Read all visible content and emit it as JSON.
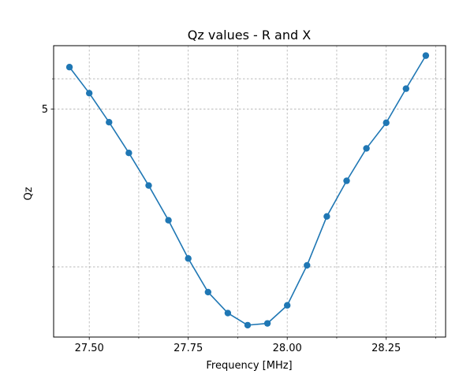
{
  "chart_data": {
    "type": "line",
    "title": "Qz values - R and X",
    "xlabel": "Frequency [MHz]",
    "ylabel": "Qz",
    "x": [
      27.45,
      27.5,
      27.55,
      27.6,
      27.65,
      27.7,
      27.75,
      27.8,
      27.85,
      27.9,
      27.95,
      28.0,
      28.05,
      28.1,
      28.15,
      28.2,
      28.25,
      28.3,
      28.35
    ],
    "series": [
      {
        "values": [
          8.4,
          6.12,
          4.21,
          2.73,
          1.6,
          0.75,
          0.11,
          -0.36,
          -0.74,
          -1.0,
          -0.96,
          -0.59,
          0.02,
          0.83,
          1.74,
          2.92,
          4.18,
          6.47,
          9.62
        ],
        "color": "#1f77b4"
      }
    ],
    "xlim": [
      27.41,
      28.4
    ],
    "ylim": [
      -1.29,
      10.8
    ],
    "xticks": [
      27.5,
      27.75,
      28.0,
      28.25
    ],
    "xtick_labels": [
      "27.50",
      "27.75",
      "28.00",
      "28.25"
    ],
    "yticks": [
      5
    ],
    "ytick_labels": [
      "5"
    ],
    "y_scale": "log",
    "grid": true
  }
}
